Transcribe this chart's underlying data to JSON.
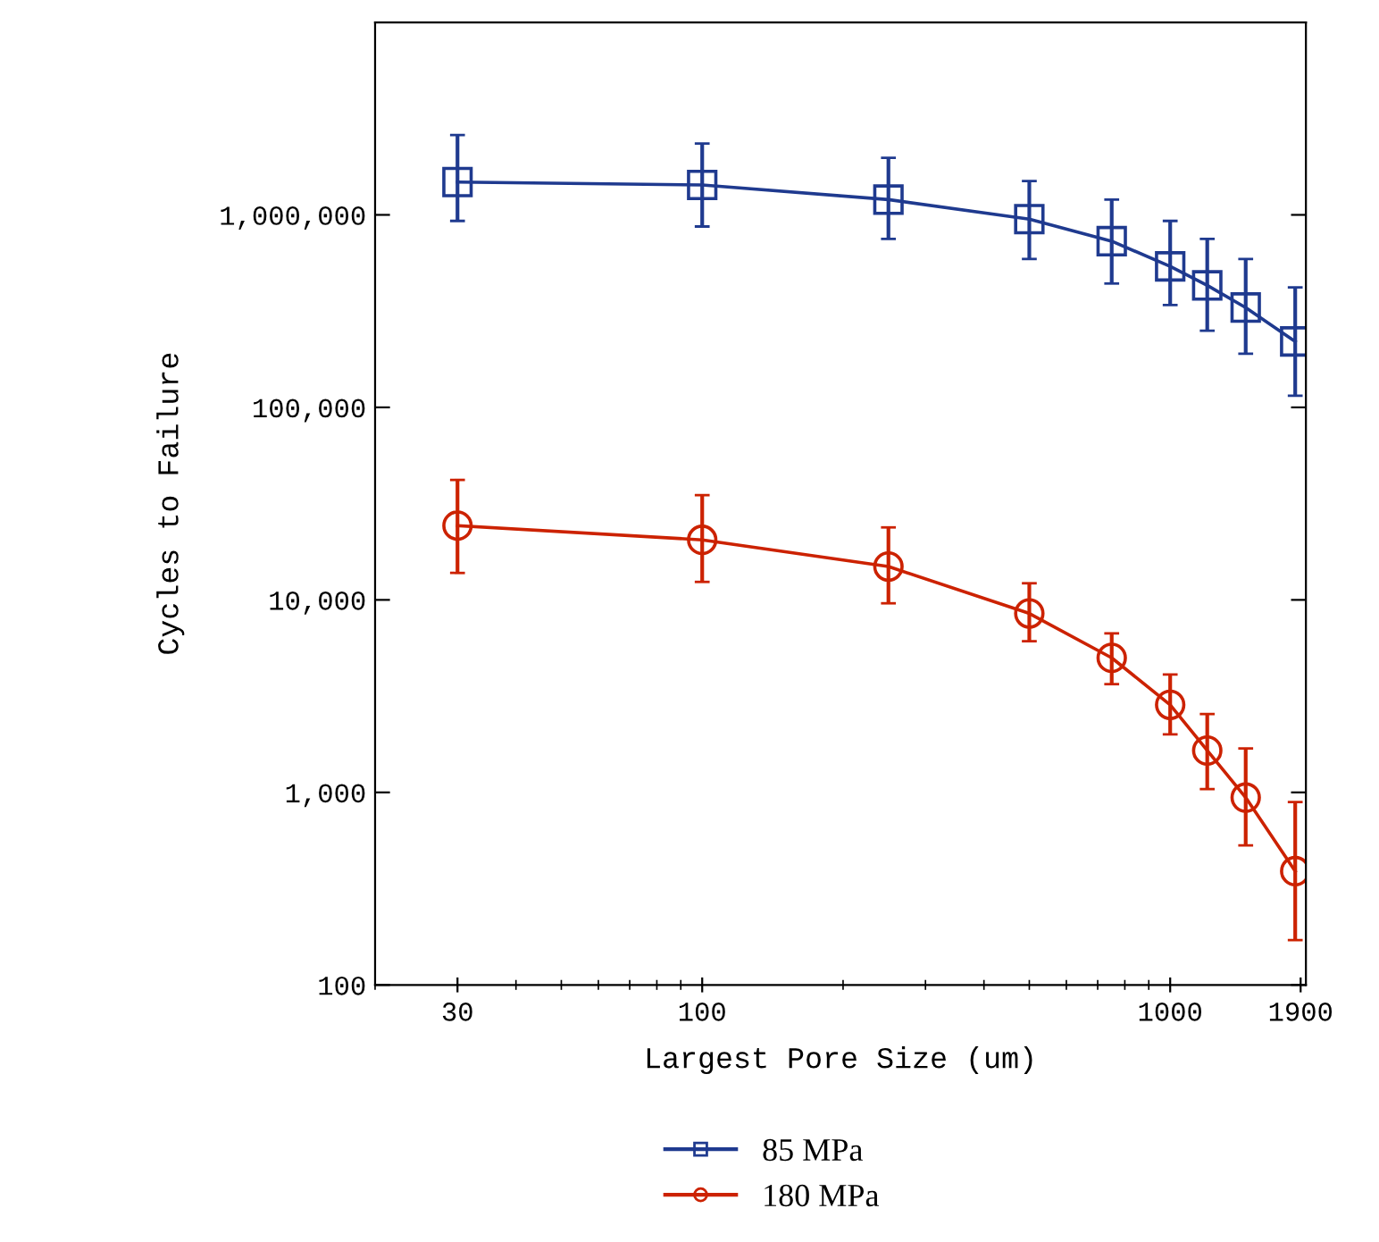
{
  "chart_data": {
    "type": "line",
    "xlabel": "Largest Pore Size (um)",
    "ylabel": "Cycles to Failure",
    "log": "xy",
    "xlim": [
      20,
      1950
    ],
    "ylim": [
      100,
      10000000
    ],
    "xticks": [
      30,
      100,
      1000,
      1900
    ],
    "yticks": [
      {
        "value": 100,
        "label": "100"
      },
      {
        "value": 1000,
        "label": "1,000"
      },
      {
        "value": 10000,
        "label": "10,000"
      },
      {
        "value": 100000,
        "label": "100,000"
      },
      {
        "value": 1000000,
        "label": "1,000,000"
      }
    ],
    "grid": false,
    "legend": "bottom",
    "series": [
      {
        "name": "85 MPa",
        "color": "#1f3a8f",
        "marker": "square",
        "x": [
          30,
          100,
          250,
          500,
          750,
          1000,
          1200,
          1450,
          1850
        ],
        "values": [
          1480000,
          1430000,
          1200000,
          950000,
          730000,
          540000,
          430000,
          330000,
          220000
        ],
        "errors": [
          [
            930000,
            2600000
          ],
          [
            870000,
            2350000
          ],
          [
            750000,
            1980000
          ],
          [
            590000,
            1500000
          ],
          [
            440000,
            1200000
          ],
          [
            340000,
            930000
          ],
          [
            250000,
            750000
          ],
          [
            190000,
            590000
          ],
          [
            115000,
            420000
          ]
        ]
      },
      {
        "name": "180 MPa",
        "color": "#cc2200",
        "marker": "circle",
        "x": [
          30,
          100,
          250,
          500,
          750,
          1000,
          1200,
          1450,
          1850
        ],
        "values": [
          24300,
          20500,
          14900,
          8500,
          5000,
          2850,
          1650,
          940,
          390
        ],
        "errors": [
          [
            13800,
            42000
          ],
          [
            12400,
            35000
          ],
          [
            9600,
            23800
          ],
          [
            6100,
            12200
          ],
          [
            3650,
            6700
          ],
          [
            2000,
            4100
          ],
          [
            1040,
            2550
          ],
          [
            530,
            1690
          ],
          [
            171,
            890
          ]
        ]
      }
    ]
  }
}
